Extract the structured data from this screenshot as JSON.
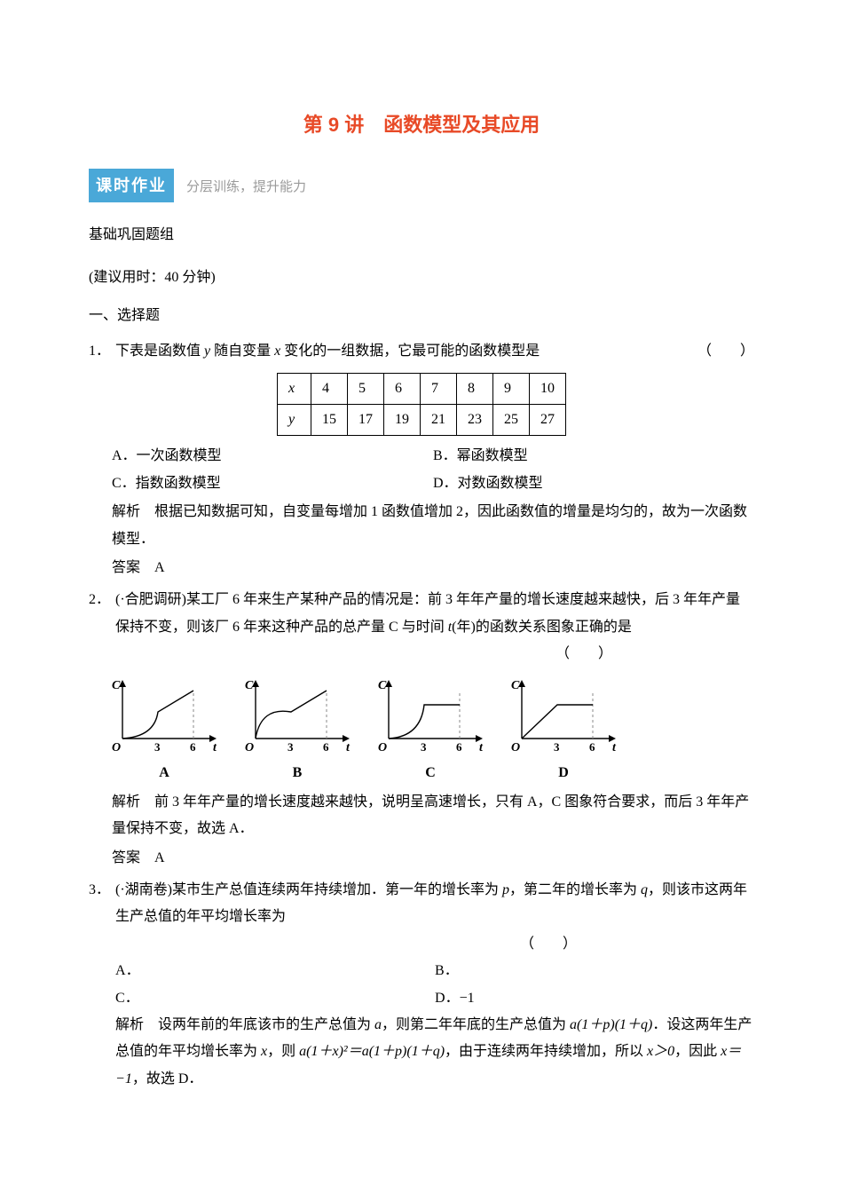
{
  "title": "第 9 讲　函数模型及其应用",
  "banner": {
    "main": "课时作业",
    "sub": "分层训练，提升能力"
  },
  "group": "基础巩固题组",
  "timeHint": "(建议用时：40 分钟)",
  "sectionA": "一、选择题",
  "q1": {
    "num": "1．",
    "stem_pre": "下表是函数值 ",
    "stem_y": "y",
    "stem_mid1": " 随自变量 ",
    "stem_x": "x",
    "stem_post": " 变化的一组数据，它最可能的函数模型是",
    "paren": "（　　）",
    "table": {
      "rowX": [
        "x",
        "4",
        "5",
        "6",
        "7",
        "8",
        "9",
        "10"
      ],
      "rowY": [
        "y",
        "15",
        "17",
        "19",
        "21",
        "23",
        "25",
        "27"
      ]
    },
    "optA": "A．一次函数模型",
    "optB": "B．幂函数模型",
    "optC": "C．指数函数模型",
    "optD": "D．对数函数模型",
    "expl": "解析　根据已知数据可知，自变量每增加 1 函数值增加 2，因此函数值的增量是均匀的，故为一次函数模型．",
    "ans": "答案　A"
  },
  "q2": {
    "num": "2．",
    "src": "(·合肥调研)",
    "stem1": "某工厂 6 年来生产某种产品的情况是：前 3 年年产量的增长速度越来越快，后 3 年年产量保持不变，则该厂 6 年来这种产品的总产量 C 与时间 ",
    "tvar": "t",
    "stem2": "(年)的函数关系图象正确的是",
    "paren": "（　　）",
    "charts": {
      "common": {
        "w": 130,
        "h": 96,
        "axis_color": "#000000",
        "line_color": "#000000",
        "dash_color": "#888888",
        "label_C": "C",
        "label_O": "O",
        "label_t": "t",
        "tick3": "3",
        "tick6": "6",
        "line_width": 1.4
      },
      "items": [
        {
          "label": "A",
          "type": "accel-then-linear"
        },
        {
          "label": "B",
          "type": "decel-then-linear"
        },
        {
          "label": "C",
          "type": "accel-then-flat"
        },
        {
          "label": "D",
          "type": "linear-then-flat"
        }
      ]
    },
    "expl": "解析　前 3 年年产量的增长速度越来越快，说明呈高速增长，只有 A，C 图象符合要求，而后 3 年年产量保持不变，故选 A．",
    "ans": "答案　A"
  },
  "q3": {
    "num": "3．",
    "src": "(·湖南卷)",
    "stem_a": "某市生产总值连续两年持续增加．第一年的增长率为 ",
    "pvar": "p",
    "stem_b": "，第二年的增长率为 ",
    "qvar": "q",
    "stem_c": "，则该市这两年生产总值的年平均增长率为",
    "paren": "（　　）",
    "optA": "A．",
    "optB": "B．",
    "optC": "C．",
    "optD": "D．−1",
    "expl_a": "解析　设两年前的年底该市的生产总值为 ",
    "avar": "a",
    "expl_b": "，则第二年年底的生产总值为 ",
    "expr1": "a(1＋p)(1＋q)",
    "expl_c": "．设这两年生产总值的年平均增长率为 ",
    "xvar": "x",
    "expl_d": "，则 ",
    "expr2": "a(1＋x)²＝a(1＋p)(1＋q)",
    "expl_e": "，由于连续两年持续增加，所以 ",
    "cond": "x＞0",
    "expl_f": "，因此 ",
    "res": "x＝−1",
    "expl_g": "，故选 D．"
  }
}
